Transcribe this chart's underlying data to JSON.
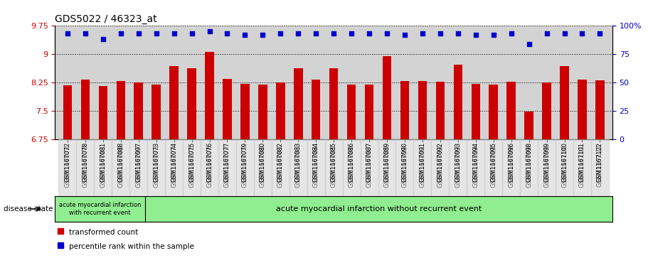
{
  "title": "GDS5022 / 46323_at",
  "samples": [
    "GSM1167072",
    "GSM1167078",
    "GSM1167081",
    "GSM1167088",
    "GSM1167097",
    "GSM1167073",
    "GSM1167074",
    "GSM1167075",
    "GSM1167076",
    "GSM1167077",
    "GSM1167079",
    "GSM1167080",
    "GSM1167082",
    "GSM1167083",
    "GSM1167084",
    "GSM1167085",
    "GSM1167086",
    "GSM1167087",
    "GSM1167089",
    "GSM1167090",
    "GSM1167091",
    "GSM1167092",
    "GSM1167093",
    "GSM1167094",
    "GSM1167095",
    "GSM1167096",
    "GSM1167098",
    "GSM1167099",
    "GSM1167100",
    "GSM1167101",
    "GSM1167122"
  ],
  "bar_values": [
    8.18,
    8.32,
    8.16,
    8.29,
    8.25,
    8.2,
    8.68,
    8.63,
    9.07,
    8.35,
    8.21,
    8.19,
    8.25,
    8.63,
    8.32,
    8.62,
    8.2,
    8.19,
    8.95,
    8.29,
    8.29,
    8.28,
    8.72,
    8.22,
    8.19,
    8.28,
    7.48,
    8.25,
    8.68,
    8.32,
    8.3
  ],
  "percentile_values": [
    93,
    93,
    88,
    93,
    93,
    93,
    93,
    93,
    95,
    93,
    92,
    92,
    93,
    93,
    93,
    93,
    93,
    93,
    93,
    92,
    93,
    93,
    93,
    92,
    92,
    93,
    84,
    93,
    93,
    93,
    93
  ],
  "group1_count": 5,
  "group1_label": "acute myocardial infarction\nwith recurrent event",
  "group2_label": "acute myocardial infarction without recurrent event",
  "disease_state_label": "disease state",
  "ylim_left": [
    6.75,
    9.75
  ],
  "yticks_left": [
    6.75,
    7.5,
    8.25,
    9.0,
    9.75
  ],
  "ytick_labels_left": [
    "6.75",
    "7.5",
    "8.25",
    "9",
    "9.75"
  ],
  "ylim_right": [
    0,
    100
  ],
  "yticks_right": [
    0,
    25,
    50,
    75,
    100
  ],
  "ytick_labels_right": [
    "0",
    "25",
    "50",
    "75",
    "100%"
  ],
  "bar_color": "#cc0000",
  "dot_color": "#0000cc",
  "plot_bg_color": "#d3d3d3",
  "group_bg_color": "#90ee90",
  "legend_bar_label": "transformed count",
  "legend_dot_label": "percentile rank within the sample",
  "title_fontsize": 10,
  "bar_width": 0.5
}
